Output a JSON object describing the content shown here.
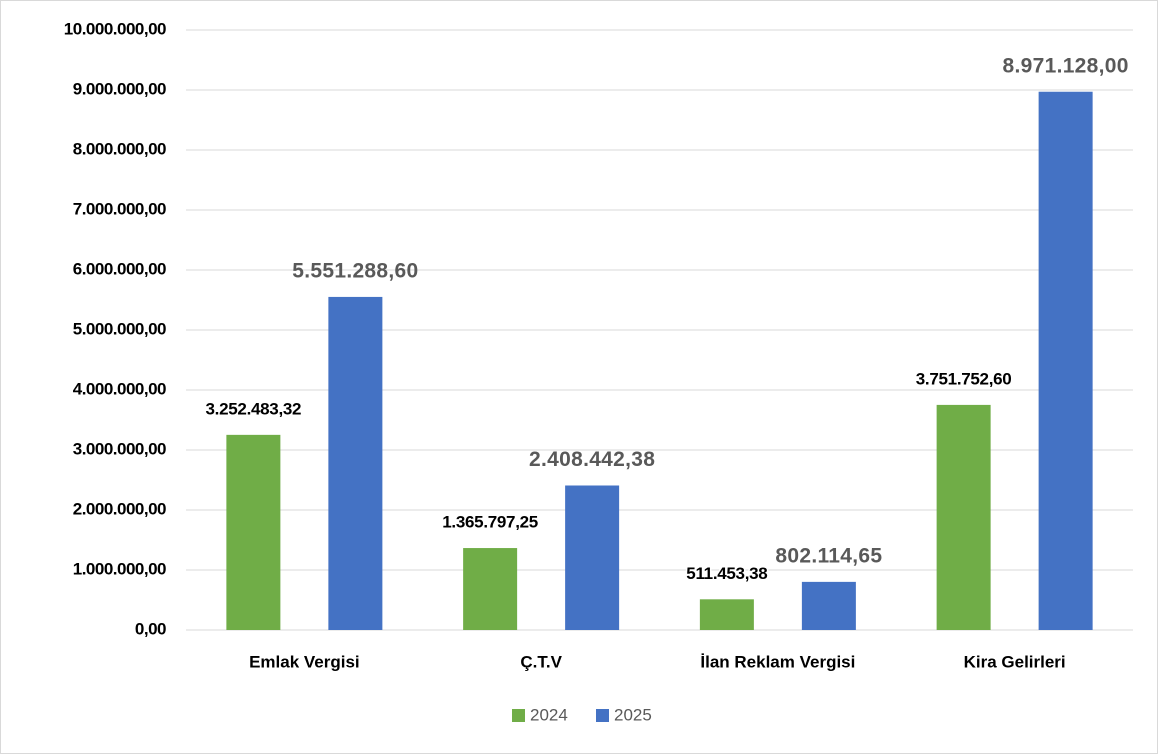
{
  "chart_data": {
    "type": "bar",
    "categories": [
      "Emlak Vergisi",
      "Ç.T.V",
      "İlan Reklam Vergisi",
      "Kira Gelirleri"
    ],
    "series": [
      {
        "name": "2024",
        "color": "#70ad47",
        "values": [
          3252483.32,
          1365797.25,
          511453.38,
          3751752.6
        ],
        "value_labels": [
          "3.252.483,32",
          "1.365.797,25",
          "511.453,38",
          "3.751.752,60"
        ]
      },
      {
        "name": "2025",
        "color": "#4472c4",
        "values": [
          5551288.6,
          2408442.38,
          802114.65,
          8971128
        ],
        "value_labels": [
          "5.551.288,60",
          "2.408.442,38",
          "802.114,65",
          "8.971.128,00"
        ]
      }
    ],
    "ylim": [
      0,
      10000000
    ],
    "yticks": [
      {
        "value": 0,
        "label": "0,00"
      },
      {
        "value": 1000000,
        "label": "1.000.000,00"
      },
      {
        "value": 2000000,
        "label": "2.000.000,00"
      },
      {
        "value": 3000000,
        "label": "3.000.000,00"
      },
      {
        "value": 4000000,
        "label": "4.000.000,00"
      },
      {
        "value": 5000000,
        "label": "5.000.000,00"
      },
      {
        "value": 6000000,
        "label": "6.000.000,00"
      },
      {
        "value": 7000000,
        "label": "7.000.000,00"
      },
      {
        "value": 8000000,
        "label": "8.000.000,00"
      },
      {
        "value": 9000000,
        "label": "9.000.000,00"
      },
      {
        "value": 10000000,
        "label": "10.000.000,00"
      }
    ],
    "grid": true,
    "legend": "bottom"
  }
}
